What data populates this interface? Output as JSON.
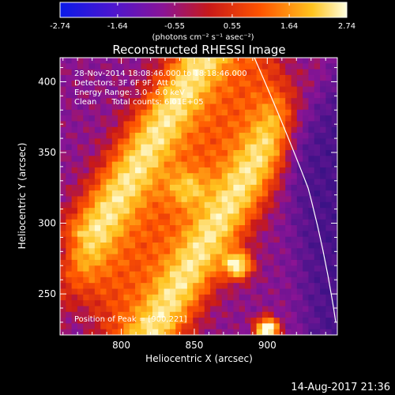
{
  "chart_data": {
    "type": "heatmap",
    "title": "Reconstructed RHESSI Image",
    "xlabel": "Heliocentric X (arcsec)",
    "ylabel": "Heliocentric Y (arcsec)",
    "xlim": [
      758,
      948
    ],
    "ylim": [
      221,
      417
    ],
    "x_ticks": [
      800,
      850,
      900
    ],
    "y_ticks": [
      250,
      300,
      350,
      400
    ],
    "colorbar": {
      "range": [
        -2.74,
        2.74
      ],
      "ticks": [
        "-2.74",
        "-1.64",
        "-0.55",
        "0.55",
        "1.64",
        "2.74"
      ],
      "units_label": "(photons cm⁻² s⁻¹ asec⁻²)",
      "colors": [
        "#0a1ae8",
        "#4b16d0",
        "#8a1495",
        "#c81919",
        "#ff5500",
        "#ffc41f",
        "#ffffe0"
      ]
    },
    "annotations": [
      "28-Nov-2014 18:08:46.000 to 18:18:46.000",
      "Detectors: 3F 6F 9F, Att 0",
      "Energy Range: 3.0 - 6.0 keV",
      "Clean      Total counts: 6.01E+05"
    ],
    "peak_label": "Position of Peak = [900,221]",
    "peak": [
      900,
      221
    ],
    "bright_spots": [
      {
        "x": 880,
        "y": 270
      },
      {
        "x": 900,
        "y": 225
      },
      {
        "x": 845,
        "y": 325
      }
    ],
    "grid": false
  },
  "footer": {
    "timestamp": "14-Aug-2017 21:36"
  }
}
